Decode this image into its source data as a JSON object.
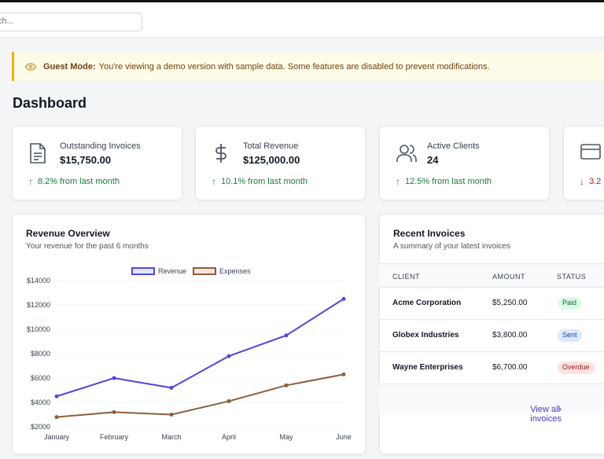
{
  "search": {
    "placeholder": "ch..."
  },
  "banner": {
    "title": "Guest Mode:",
    "message": "You're viewing a demo version with sample data. Some features are disabled to prevent modifications."
  },
  "page": {
    "title": "Dashboard"
  },
  "stats": [
    {
      "label": "Outstanding Invoices",
      "value": "$15,750.00",
      "trend": "8.2% from last month",
      "direction": "up",
      "icon": "document-icon"
    },
    {
      "label": "Total Revenue",
      "value": "$125,000.00",
      "trend": "10.1% from last month",
      "direction": "up",
      "icon": "dollar-icon"
    },
    {
      "label": "Active Clients",
      "value": "24",
      "trend": "12.5% from last month",
      "direction": "up",
      "icon": "users-icon"
    },
    {
      "label": "",
      "value": "",
      "trend": "3.2",
      "direction": "down",
      "icon": "credit-card-icon"
    }
  ],
  "revenue_panel": {
    "title": "Revenue Overview",
    "subtitle": "Your revenue for the past 6 months"
  },
  "chart_data": {
    "type": "line",
    "categories": [
      "January",
      "February",
      "March",
      "April",
      "May",
      "June"
    ],
    "series": [
      {
        "name": "Revenue",
        "values": [
          4500,
          6000,
          5200,
          7800,
          9500,
          12500
        ],
        "color": "#4f46e5"
      },
      {
        "name": "Expenses",
        "values": [
          2800,
          3200,
          3000,
          4100,
          5400,
          6300
        ],
        "color": "#8b5e3c"
      }
    ],
    "yticks": [
      "$2000",
      "$4000",
      "$6000",
      "$8000",
      "$10000",
      "$12000",
      "$14000"
    ],
    "ylim": [
      2000,
      14000
    ],
    "legend": "top",
    "grid": true,
    "colors": {
      "revenue": "#4f46e5",
      "expenses": "#8b5e3c"
    }
  },
  "invoices_panel": {
    "title": "Recent Invoices",
    "subtitle": "A summary of your latest invoices",
    "columns": [
      "CLIENT",
      "AMOUNT",
      "STATUS"
    ],
    "rows": [
      {
        "client": "Acme Corporation",
        "amount": "$5,250.00",
        "status": "Paid"
      },
      {
        "client": "Globex Industries",
        "amount": "$3,800.00",
        "status": "Sent"
      },
      {
        "client": "Wayne Enterprises",
        "amount": "$6,700.00",
        "status": "Overdue"
      }
    ],
    "view_all": "View all invoices"
  }
}
